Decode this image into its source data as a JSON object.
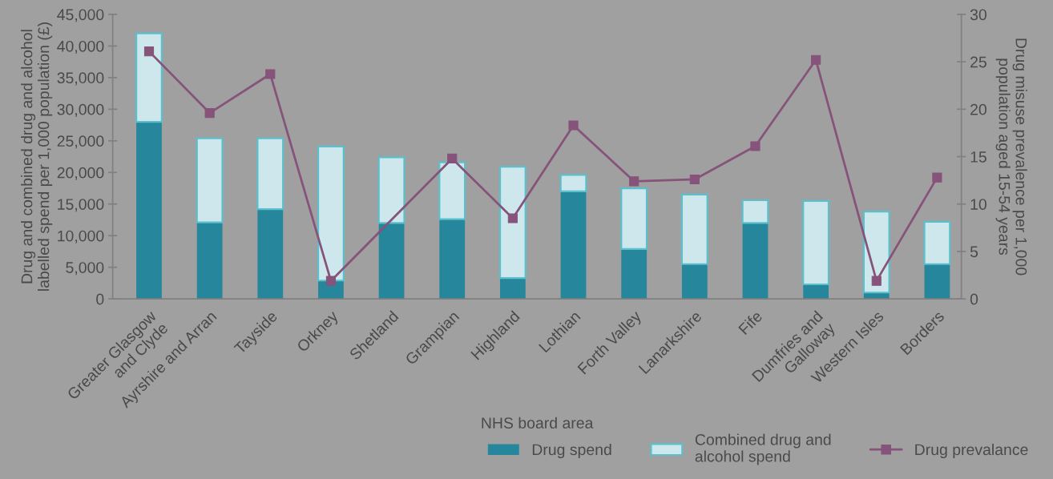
{
  "chart_data": {
    "type": "bar",
    "stacked": true,
    "xlabel": "NHS board area",
    "ylabel": "Drug and combined drug and alcohol\nlabelled spend per 1,000 population (£)",
    "y2label": "Drug misuse prevalence per 1,000\npopulation aged 15-54 years",
    "categories": [
      "Greater Glasgow\nand Clyde",
      "Ayrshire and Arran",
      "Tayside",
      "Orkney",
      "Shetland",
      "Grampian",
      "Highland",
      "Lothian",
      "Forth Valley",
      "Lanarkshire",
      "Fife",
      "Dumfries and\nGalloway",
      "Western Isles",
      "Borders"
    ],
    "series": [
      {
        "name": "Drug spend",
        "color": "#26869b",
        "values": [
          28000,
          12100,
          14200,
          2900,
          12000,
          12600,
          3300,
          17000,
          7900,
          5500,
          12000,
          2300,
          1000,
          5500
        ]
      },
      {
        "name": "Combined drug and\nalcohol spend",
        "color": "#cde7ec",
        "values": [
          14000,
          13300,
          11200,
          21200,
          10400,
          9000,
          17600,
          2600,
          9600,
          11000,
          3600,
          13200,
          12800,
          6700
        ]
      },
      {
        "name": "Drug prevalance",
        "type": "line",
        "axis": "y2",
        "color": "#86537a",
        "marker": "square",
        "values": [
          26.1,
          19.6,
          23.7,
          1.9,
          null,
          14.8,
          8.5,
          18.3,
          12.4,
          12.6,
          16.1,
          25.2,
          1.9,
          12.8
        ]
      }
    ],
    "ylim": [
      0,
      45000
    ],
    "yticks": [
      0,
      {
        "value": 5000,
        "label": "5,000"
      },
      {
        "value": 10000,
        "label": "10,000"
      },
      {
        "value": 15000,
        "label": "15,000"
      },
      {
        "value": 20000,
        "label": "20,000"
      },
      {
        "value": 25000,
        "label": "25,000"
      },
      {
        "value": 30000,
        "label": "30,000"
      },
      {
        "value": 35000,
        "label": "35,000"
      },
      {
        "value": 40000,
        "label": "40,000"
      },
      {
        "value": 45000,
        "label": "45,000"
      }
    ],
    "y2lim": [
      0,
      30
    ],
    "y2ticks": [
      0,
      5,
      10,
      15,
      20,
      25,
      30
    ],
    "grid": false,
    "legend": "bottom right"
  }
}
